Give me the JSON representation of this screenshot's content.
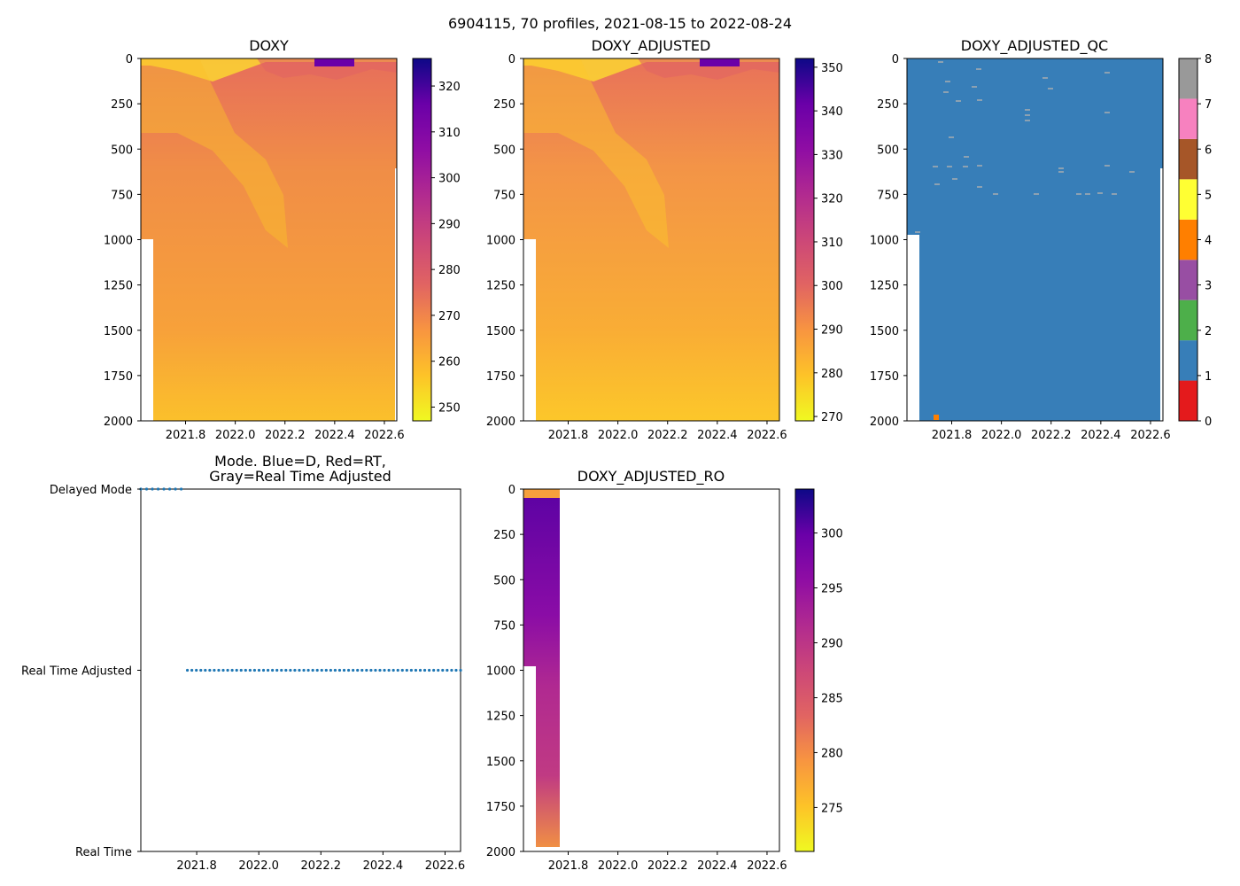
{
  "figure": {
    "title": "6904115, 70 profiles, 2021-08-15 to 2022-08-24"
  },
  "chart_data": [
    {
      "type": "heatmap",
      "title": "DOXY",
      "xlim": [
        2021.62,
        2022.65
      ],
      "ylim": [
        2000,
        0
      ],
      "xticks": [
        "2021.8",
        "2022.0",
        "2022.2",
        "2022.4",
        "2022.6"
      ],
      "yticks": [
        "0",
        "250",
        "500",
        "750",
        "1000",
        "1250",
        "1500",
        "1750",
        "2000"
      ],
      "colorbar": {
        "colormap": "plasma_r",
        "range": [
          247,
          326
        ],
        "ticks": [
          "250",
          "260",
          "270",
          "280",
          "290",
          "300",
          "310",
          "320"
        ]
      }
    },
    {
      "type": "heatmap",
      "title": "DOXY_ADJUSTED",
      "xlim": [
        2021.62,
        2022.65
      ],
      "ylim": [
        2000,
        0
      ],
      "xticks": [
        "2021.8",
        "2022.0",
        "2022.2",
        "2022.4",
        "2022.6"
      ],
      "yticks": [
        "0",
        "250",
        "500",
        "750",
        "1000",
        "1250",
        "1500",
        "1750",
        "2000"
      ],
      "colorbar": {
        "colormap": "plasma_r",
        "range": [
          269,
          352
        ],
        "ticks": [
          "270",
          "280",
          "290",
          "300",
          "310",
          "320",
          "330",
          "340",
          "350"
        ]
      }
    },
    {
      "type": "heatmap",
      "title": "DOXY_ADJUSTED_QC",
      "xlim": [
        2021.62,
        2022.65
      ],
      "ylim": [
        2000,
        0
      ],
      "xticks": [
        "2021.8",
        "2022.0",
        "2022.2",
        "2022.4",
        "2022.6"
      ],
      "yticks": [
        "0",
        "250",
        "500",
        "750",
        "1000",
        "1250",
        "1500",
        "1750",
        "2000"
      ],
      "dominant_value": 1,
      "colorbar": {
        "colormap": "qc_categorical",
        "range": [
          0,
          8
        ],
        "ticks": [
          "0",
          "1",
          "2",
          "3",
          "4",
          "5",
          "6",
          "7",
          "8"
        ],
        "colors": [
          "#e41a1c",
          "#377eb8",
          "#4daf4a",
          "#984ea3",
          "#ff7f00",
          "#ffff33",
          "#a65628",
          "#f781bf",
          "#999999"
        ]
      }
    },
    {
      "type": "scatter",
      "title": "Mode. Blue=D, Red=RT,\nGray=Real Time Adjusted",
      "title_lines": [
        "Mode. Blue=D, Red=RT,",
        "Gray=Real Time Adjusted"
      ],
      "xlim": [
        2021.62,
        2022.65
      ],
      "xticks": [
        "2021.8",
        "2022.0",
        "2022.2",
        "2022.4",
        "2022.6"
      ],
      "ycategories": [
        "Real Time",
        "Real Time Adjusted",
        "Delayed Mode"
      ],
      "series": [
        {
          "name": "Delayed Mode",
          "x_range": [
            2021.62,
            2021.75
          ],
          "y": "Delayed Mode",
          "count": 8
        },
        {
          "name": "Real Time Adjusted",
          "x_range": [
            2021.77,
            2022.65
          ],
          "y": "Real Time Adjusted",
          "count": 62
        }
      ]
    },
    {
      "type": "heatmap",
      "title": "DOXY_ADJUSTED_RO",
      "xlim": [
        2021.62,
        2022.65
      ],
      "ylim": [
        2000,
        0
      ],
      "data_xrange": [
        2021.62,
        2021.75
      ],
      "xticks": [
        "2021.8",
        "2022.0",
        "2022.2",
        "2022.4",
        "2022.6"
      ],
      "yticks": [
        "0",
        "250",
        "500",
        "750",
        "1000",
        "1250",
        "1500",
        "1750",
        "2000"
      ],
      "colorbar": {
        "colormap": "plasma_r",
        "range": [
          271,
          304
        ],
        "ticks": [
          "275",
          "280",
          "285",
          "290",
          "295",
          "300"
        ]
      }
    }
  ]
}
